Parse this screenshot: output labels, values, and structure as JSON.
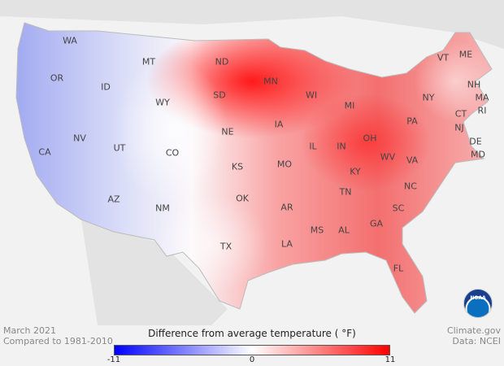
{
  "map": {
    "states": [
      {
        "abbr": "WA"
      },
      {
        "abbr": "OR"
      },
      {
        "abbr": "ID"
      },
      {
        "abbr": "MT"
      },
      {
        "abbr": "ND"
      },
      {
        "abbr": "MN"
      },
      {
        "abbr": "WI"
      },
      {
        "abbr": "MI"
      },
      {
        "abbr": "SD"
      },
      {
        "abbr": "WY"
      },
      {
        "abbr": "NE"
      },
      {
        "abbr": "IA"
      },
      {
        "abbr": "IL"
      },
      {
        "abbr": "IN"
      },
      {
        "abbr": "OH"
      },
      {
        "abbr": "PA"
      },
      {
        "abbr": "NY"
      },
      {
        "abbr": "VT"
      },
      {
        "abbr": "ME"
      },
      {
        "abbr": "NH"
      },
      {
        "abbr": "MA"
      },
      {
        "abbr": "CT"
      },
      {
        "abbr": "RI"
      },
      {
        "abbr": "NJ"
      },
      {
        "abbr": "DE"
      },
      {
        "abbr": "MD"
      },
      {
        "abbr": "VA"
      },
      {
        "abbr": "WV"
      },
      {
        "abbr": "KY"
      },
      {
        "abbr": "TN"
      },
      {
        "abbr": "NC"
      },
      {
        "abbr": "SC"
      },
      {
        "abbr": "GA"
      },
      {
        "abbr": "AL"
      },
      {
        "abbr": "MS"
      },
      {
        "abbr": "LA"
      },
      {
        "abbr": "AR"
      },
      {
        "abbr": "OK"
      },
      {
        "abbr": "TX"
      },
      {
        "abbr": "NM"
      },
      {
        "abbr": "AZ"
      },
      {
        "abbr": "UT"
      },
      {
        "abbr": "NV"
      },
      {
        "abbr": "CA"
      },
      {
        "abbr": "CO"
      },
      {
        "abbr": "KS"
      },
      {
        "abbr": "MO"
      },
      {
        "abbr": "FL"
      }
    ]
  },
  "footer": {
    "date": "March 2021",
    "baseline": "Compared to 1981-2010",
    "source": "Climate.gov",
    "data_credit": "Data: NCEI",
    "logo_text": "NOAA"
  },
  "legend": {
    "title": "Difference from average temperature ( °F)",
    "min": "-11",
    "mid": "0",
    "max": "11",
    "colors": {
      "low": "#0000ff",
      "mid": "#ffffff",
      "high": "#ff0000"
    }
  }
}
